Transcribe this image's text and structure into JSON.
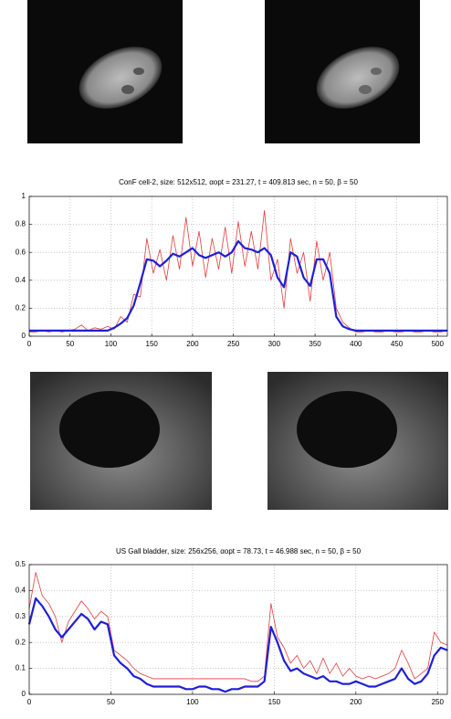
{
  "chart_data": [
    {
      "type": "line",
      "title": "ConF cell-2, size: 512x512, αopt = 231.27, t = 409.813 sec, n = 50, β = 50",
      "x": [
        0,
        8,
        16,
        24,
        32,
        40,
        48,
        56,
        64,
        72,
        80,
        88,
        96,
        104,
        112,
        120,
        128,
        136,
        144,
        152,
        160,
        168,
        176,
        184,
        192,
        200,
        208,
        216,
        224,
        232,
        240,
        248,
        256,
        264,
        272,
        280,
        288,
        296,
        304,
        312,
        320,
        328,
        336,
        344,
        352,
        360,
        368,
        376,
        384,
        392,
        400,
        408,
        416,
        424,
        432,
        440,
        448,
        456,
        464,
        472,
        480,
        488,
        496,
        504,
        512
      ],
      "series": [
        {
          "color": "#e03c3c",
          "values": [
            0.03,
            0.03,
            0.04,
            0.03,
            0.04,
            0.03,
            0.04,
            0.05,
            0.08,
            0.04,
            0.06,
            0.05,
            0.07,
            0.05,
            0.14,
            0.1,
            0.3,
            0.28,
            0.7,
            0.45,
            0.62,
            0.4,
            0.72,
            0.48,
            0.85,
            0.5,
            0.75,
            0.42,
            0.7,
            0.48,
            0.78,
            0.45,
            0.82,
            0.5,
            0.75,
            0.48,
            0.9,
            0.4,
            0.55,
            0.2,
            0.7,
            0.45,
            0.6,
            0.25,
            0.68,
            0.4,
            0.6,
            0.2,
            0.1,
            0.06,
            0.03,
            0.03,
            0.04,
            0.03,
            0.03,
            0.04,
            0.03,
            0.03,
            0.04,
            0.03,
            0.03,
            0.04,
            0.03,
            0.03,
            0.04
          ]
        },
        {
          "color": "#1f1fd6",
          "values": [
            0.04,
            0.04,
            0.04,
            0.04,
            0.04,
            0.04,
            0.04,
            0.04,
            0.04,
            0.04,
            0.04,
            0.04,
            0.04,
            0.06,
            0.09,
            0.13,
            0.22,
            0.38,
            0.55,
            0.54,
            0.5,
            0.54,
            0.59,
            0.57,
            0.6,
            0.63,
            0.58,
            0.56,
            0.58,
            0.6,
            0.57,
            0.6,
            0.68,
            0.63,
            0.62,
            0.6,
            0.63,
            0.58,
            0.42,
            0.35,
            0.6,
            0.57,
            0.42,
            0.36,
            0.55,
            0.55,
            0.45,
            0.14,
            0.07,
            0.05,
            0.04,
            0.04,
            0.04,
            0.04,
            0.04,
            0.04,
            0.04,
            0.04,
            0.04,
            0.04,
            0.04,
            0.04,
            0.04,
            0.04,
            0.04
          ]
        }
      ],
      "xlim": [
        0,
        512
      ],
      "xticks": [
        0,
        50,
        100,
        150,
        200,
        250,
        300,
        350,
        400,
        450,
        500
      ],
      "ylim": [
        0,
        1
      ],
      "yticks": [
        0,
        0.2,
        0.4,
        0.6,
        0.8,
        1
      ],
      "grid": true
    },
    {
      "type": "line",
      "title": "US Gall bladder, size: 256x256, αopt = 78.73, t = 46.988 sec, n = 50, β = 50",
      "x": [
        0,
        4,
        8,
        12,
        16,
        20,
        24,
        28,
        32,
        36,
        40,
        44,
        48,
        52,
        56,
        60,
        64,
        68,
        72,
        76,
        80,
        84,
        88,
        92,
        96,
        100,
        104,
        108,
        112,
        116,
        120,
        124,
        128,
        132,
        136,
        140,
        144,
        148,
        152,
        156,
        160,
        164,
        168,
        172,
        176,
        180,
        184,
        188,
        192,
        196,
        200,
        204,
        208,
        212,
        216,
        220,
        224,
        228,
        232,
        236,
        240,
        244,
        248,
        252,
        256
      ],
      "series": [
        {
          "color": "#e03c3c",
          "values": [
            0.33,
            0.47,
            0.38,
            0.35,
            0.3,
            0.2,
            0.28,
            0.32,
            0.36,
            0.33,
            0.29,
            0.32,
            0.3,
            0.17,
            0.15,
            0.13,
            0.1,
            0.08,
            0.07,
            0.06,
            0.06,
            0.06,
            0.06,
            0.06,
            0.06,
            0.06,
            0.06,
            0.06,
            0.06,
            0.06,
            0.06,
            0.06,
            0.06,
            0.06,
            0.05,
            0.05,
            0.07,
            0.35,
            0.22,
            0.18,
            0.12,
            0.15,
            0.1,
            0.13,
            0.08,
            0.14,
            0.08,
            0.12,
            0.07,
            0.1,
            0.07,
            0.06,
            0.07,
            0.06,
            0.07,
            0.08,
            0.1,
            0.17,
            0.12,
            0.06,
            0.08,
            0.1,
            0.24,
            0.2,
            0.19
          ]
        },
        {
          "color": "#1f1fd6",
          "values": [
            0.27,
            0.37,
            0.34,
            0.3,
            0.25,
            0.22,
            0.25,
            0.28,
            0.31,
            0.29,
            0.25,
            0.28,
            0.27,
            0.15,
            0.12,
            0.1,
            0.07,
            0.06,
            0.04,
            0.03,
            0.03,
            0.03,
            0.03,
            0.03,
            0.02,
            0.02,
            0.03,
            0.03,
            0.02,
            0.02,
            0.01,
            0.02,
            0.02,
            0.03,
            0.03,
            0.03,
            0.05,
            0.26,
            0.2,
            0.13,
            0.09,
            0.1,
            0.08,
            0.07,
            0.06,
            0.07,
            0.05,
            0.05,
            0.04,
            0.04,
            0.05,
            0.04,
            0.03,
            0.03,
            0.04,
            0.05,
            0.06,
            0.1,
            0.06,
            0.04,
            0.05,
            0.08,
            0.15,
            0.18,
            0.17
          ]
        }
      ],
      "xlim": [
        0,
        256
      ],
      "xticks": [
        0,
        50,
        100,
        150,
        200,
        250
      ],
      "ylim": [
        0,
        0.5
      ],
      "yticks": [
        0,
        0.1,
        0.2,
        0.3,
        0.4,
        0.5
      ],
      "grid": true
    }
  ]
}
